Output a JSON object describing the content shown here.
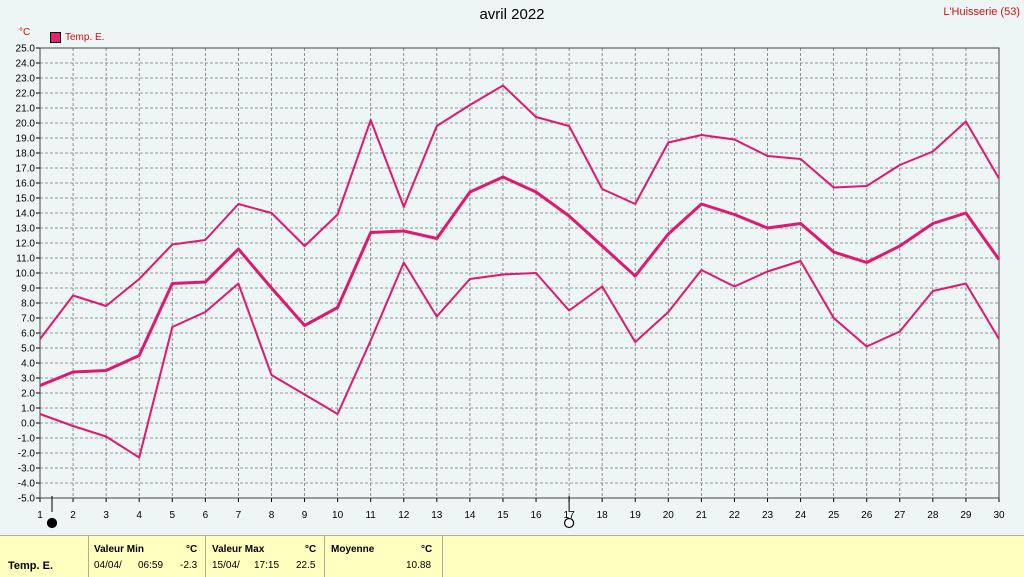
{
  "title": "avril 2022",
  "station": "L'Huisserie (53)",
  "unit": "°C",
  "legend_label": "Temp. E.",
  "colors": {
    "series": "#e0186f",
    "grid": "#777777",
    "footer_bg": "#ffffc0"
  },
  "chart_data": {
    "type": "line",
    "title": "avril 2022",
    "xlabel": "",
    "ylabel": "°C",
    "x": [
      1,
      2,
      3,
      4,
      5,
      6,
      7,
      8,
      9,
      10,
      11,
      12,
      13,
      14,
      15,
      16,
      17,
      18,
      19,
      20,
      21,
      22,
      23,
      24,
      25,
      26,
      27,
      28,
      29,
      30
    ],
    "xlim": [
      1,
      30
    ],
    "ylim": [
      -5,
      25
    ],
    "ytick_step": 1,
    "grid": true,
    "legend_position": "top-left",
    "series": [
      {
        "name": "Temp. E.",
        "role": "max",
        "values": [
          5.6,
          8.5,
          7.8,
          9.6,
          11.9,
          12.2,
          14.6,
          14.0,
          11.8,
          13.9,
          20.2,
          14.4,
          19.8,
          21.2,
          22.5,
          20.4,
          19.8,
          15.6,
          14.6,
          18.7,
          19.2,
          18.9,
          17.8,
          17.6,
          15.7,
          15.8,
          17.2,
          18.1,
          20.1,
          16.3
        ]
      },
      {
        "name": "Temp. E.",
        "role": "mean",
        "values": [
          2.5,
          3.4,
          3.5,
          4.5,
          9.3,
          9.4,
          11.6,
          9.0,
          6.5,
          7.7,
          12.7,
          12.8,
          12.3,
          15.4,
          16.4,
          15.4,
          13.8,
          11.8,
          9.8,
          12.6,
          14.6,
          13.9,
          13.0,
          13.3,
          11.4,
          10.7,
          11.8,
          13.3,
          14.0,
          10.9
        ]
      },
      {
        "name": "Temp. E.",
        "role": "min",
        "values": [
          0.6,
          -0.2,
          -0.9,
          -2.3,
          6.4,
          7.4,
          9.3,
          3.2,
          1.9,
          0.6,
          5.5,
          10.7,
          7.1,
          9.6,
          9.9,
          10.0,
          7.5,
          9.1,
          5.4,
          7.4,
          10.2,
          9.1,
          10.1,
          10.8,
          7.0,
          5.1,
          6.1,
          8.8,
          9.3,
          5.6
        ]
      }
    ],
    "markers": [
      {
        "day": 1,
        "symbol": "filled-circle"
      },
      {
        "day": 17,
        "symbol": "open-circle"
      }
    ]
  },
  "footer": {
    "series_label": "Temp. E.",
    "min_header": "Valeur Min",
    "min_unit": "°C",
    "min_date": "04/04/",
    "min_time": "06:59",
    "min_value": "-2.3",
    "max_header": "Valeur Max",
    "max_unit": "°C",
    "max_date": "15/04/",
    "max_time": "17:15",
    "max_value": "22.5",
    "mean_header": "Moyenne",
    "mean_unit": "°C",
    "mean_value": "10.88"
  }
}
